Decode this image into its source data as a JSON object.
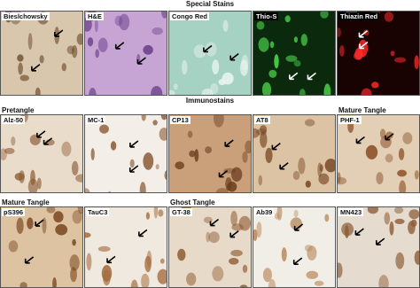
{
  "special_stains": {
    "title": "Special Stains",
    "panels": [
      "Bieslchowsky",
      "H&E",
      "Congo Red",
      "Thio-S",
      "Thiazin Red"
    ]
  },
  "immunostains": {
    "title": "Immunostains",
    "rows": [
      {
        "stages": [
          "Pretangle",
          "Mature Tangle"
        ],
        "panels": [
          "Alz-50",
          "MC-1",
          "CP13",
          "AT8",
          "PHF-1"
        ]
      },
      {
        "stages": [
          "Mature Tangle",
          "Ghost Tangle"
        ],
        "panels": [
          "pS396",
          "TauC3",
          "GT-38",
          "Ab39",
          "MN423"
        ]
      }
    ]
  }
}
